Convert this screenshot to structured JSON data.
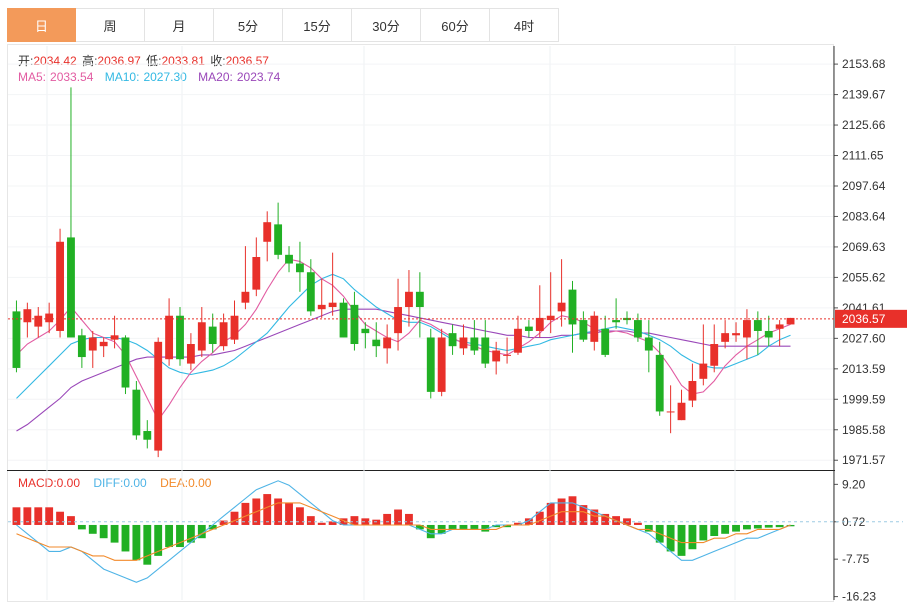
{
  "tabs": [
    "日",
    "周",
    "月",
    "5分",
    "15分",
    "30分",
    "60分",
    "4时"
  ],
  "active_tab": 0,
  "ohlc_legend": {
    "open_label": "开:",
    "open": "2034.42",
    "high_label": "高:",
    "high": "2036.97",
    "low_label": "低:",
    "low": "2033.81",
    "close_label": "收:",
    "close": "2036.57"
  },
  "ma_legend": {
    "ma5_label": "MA5:",
    "ma5": "2033.54",
    "ma10_label": "MA10:",
    "ma10": "2027.30",
    "ma20_label": "MA20:",
    "ma20": "2023.74"
  },
  "macd_legend": {
    "macd_label": "MACD:",
    "macd": "0.00",
    "diff_label": "DIFF:",
    "diff": "0.00",
    "dea_label": "DEA:",
    "dea": "0.00"
  },
  "price_axis_labels": [
    "2153.68",
    "2139.67",
    "2125.66",
    "2111.65",
    "2097.64",
    "2083.64",
    "2069.63",
    "2055.62",
    "2041.61",
    "2027.60",
    "2013.59",
    "1999.59",
    "1985.58",
    "1971.57"
  ],
  "current_price_tag": "2036.57",
  "macd_axis_labels": [
    "9.20",
    "0.72",
    "-7.75",
    "-16.23"
  ],
  "colors": {
    "up": "#e8302a",
    "down": "#21b024",
    "ma5": "#e25ca2",
    "ma10": "#33b9e3",
    "ma20": "#9a48b9",
    "diff": "#4fb4e6",
    "dea": "#f28a2b",
    "accent": "#f39a5a"
  },
  "chart_data": {
    "type": "candlestick",
    "price_ylim": [
      1968,
      2162
    ],
    "macd_ylim": [
      -17,
      12
    ],
    "candles": [
      [
        2040,
        2045,
        2012,
        2014
      ],
      [
        2035,
        2044,
        2028,
        2041
      ],
      [
        2033,
        2042,
        2028,
        2038
      ],
      [
        2035,
        2044,
        2030,
        2039
      ],
      [
        2031,
        2078,
        2028,
        2072
      ],
      [
        2074,
        2143,
        2028,
        2028
      ],
      [
        2029,
        2032,
        2014,
        2019
      ],
      [
        2022,
        2031,
        2014,
        2028
      ],
      [
        2024,
        2028,
        2019,
        2026
      ],
      [
        2027,
        2038,
        2023,
        2029
      ],
      [
        2028,
        2029,
        2002,
        2005
      ],
      [
        2004,
        2008,
        1981,
        1983
      ],
      [
        1985,
        1990,
        1977,
        1981
      ],
      [
        1976,
        2028,
        1973,
        2026
      ],
      [
        2018,
        2046,
        2015,
        2038
      ],
      [
        2038,
        2042,
        2015,
        2018
      ],
      [
        2016,
        2030,
        2013,
        2025
      ],
      [
        2022,
        2042,
        2019,
        2035
      ],
      [
        2033,
        2039,
        2021,
        2025
      ],
      [
        2024,
        2039,
        2022,
        2035
      ],
      [
        2027,
        2045,
        2025,
        2038
      ],
      [
        2044,
        2070,
        2041,
        2049
      ],
      [
        2050,
        2074,
        2047,
        2065
      ],
      [
        2072,
        2086,
        2063,
        2081
      ],
      [
        2080,
        2090,
        2064,
        2066
      ],
      [
        2066,
        2070,
        2058,
        2062
      ],
      [
        2062,
        2072,
        2049,
        2058
      ],
      [
        2058,
        2064,
        2038,
        2040
      ],
      [
        2041,
        2055,
        2037,
        2043
      ],
      [
        2042,
        2067,
        2038,
        2044
      ],
      [
        2044,
        2046,
        2028,
        2028
      ],
      [
        2043,
        2049,
        2022,
        2025
      ],
      [
        2032,
        2035,
        2023,
        2030
      ],
      [
        2027,
        2035,
        2019,
        2024
      ],
      [
        2023,
        2034,
        2016,
        2028
      ],
      [
        2030,
        2055,
        2022,
        2042
      ],
      [
        2042,
        2059,
        2033,
        2049
      ],
      [
        2049,
        2058,
        2028,
        2042
      ],
      [
        2028,
        2032,
        2000,
        2003
      ],
      [
        2003,
        2032,
        2001,
        2028
      ],
      [
        2030,
        2034,
        2020,
        2024
      ],
      [
        2023,
        2034,
        2020,
        2028
      ],
      [
        2028,
        2036,
        2020,
        2022
      ],
      [
        2028,
        2036,
        2014,
        2016
      ],
      [
        2017,
        2026,
        2011,
        2022
      ],
      [
        2020,
        2028,
        2016,
        2020
      ],
      [
        2021,
        2038,
        2020,
        2032
      ],
      [
        2033,
        2036,
        2028,
        2031
      ],
      [
        2031,
        2052,
        2028,
        2037
      ],
      [
        2036,
        2058,
        2030,
        2038
      ],
      [
        2040,
        2064,
        2033,
        2044
      ],
      [
        2050,
        2054,
        2021,
        2034
      ],
      [
        2036,
        2040,
        2026,
        2027
      ],
      [
        2026,
        2040,
        2022,
        2038
      ],
      [
        2032,
        2038,
        2019,
        2020
      ],
      [
        2036,
        2046,
        2032,
        2035
      ],
      [
        2037,
        2040,
        2034,
        2036
      ],
      [
        2036,
        2039,
        2026,
        2028
      ],
      [
        2028,
        2036,
        2012,
        2022
      ],
      [
        2020,
        2026,
        1992,
        1994
      ],
      [
        1994,
        2006,
        1984,
        1994
      ],
      [
        1990,
        2004,
        1990,
        1998
      ],
      [
        1999,
        2016,
        1996,
        2008
      ],
      [
        2009,
        2034,
        2006,
        2016
      ],
      [
        2015,
        2034,
        2012,
        2025
      ],
      [
        2026,
        2036,
        2023,
        2030
      ],
      [
        2029,
        2035,
        2026,
        2030
      ],
      [
        2028,
        2041,
        2018,
        2036
      ],
      [
        2036,
        2040,
        2020,
        2031
      ],
      [
        2031,
        2038,
        2024,
        2028
      ],
      [
        2032,
        2036,
        2024,
        2034
      ],
      [
        2034,
        2037,
        2034,
        2037
      ]
    ],
    "ma5": [
      2020,
      2025,
      2028,
      2031,
      2036,
      2042,
      2036,
      2030,
      2028,
      2026,
      2020,
      2010,
      2000,
      1990,
      1997,
      2005,
      2012,
      2017,
      2021,
      2026,
      2029,
      2034,
      2041,
      2050,
      2058,
      2064,
      2063,
      2060,
      2055,
      2052,
      2047,
      2040,
      2034,
      2031,
      2028,
      2026,
      2030,
      2036,
      2034,
      2031,
      2028,
      2025,
      2024,
      2022,
      2021,
      2020,
      2023,
      2026,
      2030,
      2035,
      2038,
      2037,
      2035,
      2032,
      2030,
      2031,
      2030,
      2028,
      2026,
      2021,
      2014,
      2006,
      2002,
      2003,
      2008,
      2015,
      2020,
      2024,
      2027,
      2030,
      2032,
      2034
    ],
    "ma10": [
      2000,
      2005,
      2010,
      2015,
      2020,
      2025,
      2027,
      2028,
      2028,
      2028,
      2027,
      2025,
      2022,
      2018,
      2014,
      2012,
      2011,
      2012,
      2013,
      2015,
      2018,
      2022,
      2026,
      2030,
      2036,
      2042,
      2047,
      2052,
      2055,
      2057,
      2055,
      2050,
      2046,
      2042,
      2039,
      2036,
      2035,
      2035,
      2033,
      2030,
      2027,
      2026,
      2025,
      2024,
      2023,
      2022,
      2023,
      2024,
      2025,
      2027,
      2028,
      2029,
      2030,
      2031,
      2032,
      2033,
      2032,
      2031,
      2029,
      2027,
      2024,
      2020,
      2017,
      2015,
      2014,
      2014,
      2016,
      2018,
      2020,
      2024,
      2027,
      2029
    ],
    "ma20": [
      1985,
      1988,
      1992,
      1996,
      2000,
      2005,
      2008,
      2010,
      2012,
      2014,
      2016,
      2018,
      2019,
      2019,
      2019,
      2019,
      2019,
      2020,
      2020,
      2021,
      2022,
      2024,
      2026,
      2028,
      2030,
      2032,
      2034,
      2036,
      2038,
      2040,
      2041,
      2041,
      2041,
      2041,
      2040,
      2039,
      2038,
      2037,
      2036,
      2035,
      2034,
      2033,
      2032,
      2031,
      2030,
      2029,
      2029,
      2028,
      2028,
      2028,
      2029,
      2029,
      2030,
      2030,
      2031,
      2031,
      2031,
      2030,
      2030,
      2029,
      2028,
      2027,
      2026,
      2025,
      2024,
      2024,
      2024,
      2024,
      2024,
      2024,
      2024,
      2024
    ],
    "macd": [
      4,
      4,
      4,
      4,
      3,
      2,
      -1,
      -2,
      -3,
      -4,
      -6,
      -8,
      -9,
      -7,
      -5,
      -5,
      -4,
      -3,
      -1,
      1,
      3,
      5,
      6,
      7,
      6,
      5,
      4,
      2,
      0.5,
      0.8,
      1.5,
      2,
      1.5,
      1.2,
      2.5,
      3.5,
      2.5,
      -1,
      -3,
      -2,
      -1,
      -1,
      -1,
      -1.5,
      -0.5,
      -0.5,
      0.5,
      1.5,
      3,
      5,
      6,
      6.5,
      4.5,
      3.5,
      2.5,
      2,
      1.5,
      0.5,
      -1.5,
      -4,
      -6,
      -7,
      -5.5,
      -3.5,
      -2.5,
      -2,
      -1.5,
      -1,
      -0.8,
      -0.6,
      -0.5,
      -0.3
    ],
    "diff": [
      0,
      -2,
      -4,
      -6,
      -6,
      -5,
      -6,
      -8,
      -10,
      -11,
      -12,
      -13,
      -12,
      -10,
      -8,
      -6,
      -4,
      -2,
      0,
      2,
      4,
      6,
      8,
      9,
      10,
      9,
      7,
      5,
      3,
      1,
      0,
      0,
      0,
      0,
      0,
      0,
      0,
      -1,
      -2,
      -2,
      -1,
      -1,
      -1,
      -1,
      0,
      0,
      0,
      1,
      3,
      5,
      5,
      5,
      4,
      3,
      2,
      1,
      0,
      -1,
      -2,
      -4,
      -6,
      -8,
      -8,
      -7,
      -6,
      -5,
      -4,
      -3,
      -3,
      -2,
      -1,
      0
    ],
    "dea": [
      -2,
      -3,
      -4,
      -5,
      -5,
      -5,
      -6,
      -7,
      -7,
      -8,
      -8,
      -8,
      -7,
      -6,
      -5,
      -4,
      -3,
      -2,
      -1,
      0,
      1,
      2,
      3,
      4,
      5,
      5,
      5,
      4,
      3,
      2,
      1,
      0,
      0,
      0,
      0,
      0,
      0,
      0,
      -1,
      -1,
      -1,
      -1,
      -1,
      -1,
      -1,
      0,
      0,
      0,
      1,
      2,
      3,
      3,
      3,
      2,
      2,
      1,
      0,
      -1,
      -1,
      -2,
      -3,
      -4,
      -4,
      -4,
      -3,
      -3,
      -2,
      -2,
      -1,
      -1,
      -1,
      0
    ]
  }
}
